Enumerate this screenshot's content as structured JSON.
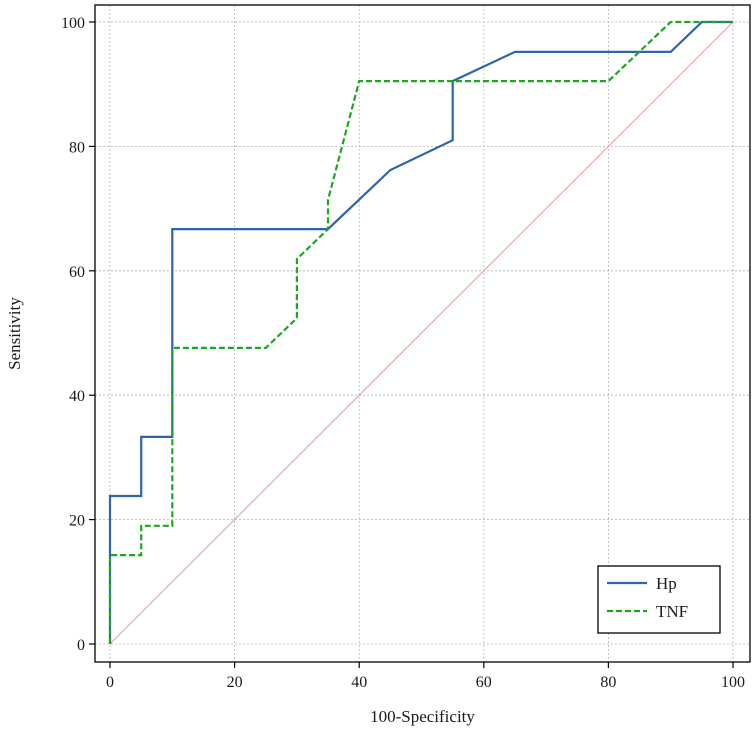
{
  "chart_data": {
    "type": "line",
    "title": "",
    "xlabel": "100-Specificity",
    "ylabel": "Sensitivity",
    "xlim": [
      0,
      100
    ],
    "ylim": [
      0,
      100
    ],
    "xticks": [
      0,
      20,
      40,
      60,
      80,
      100
    ],
    "yticks": [
      0,
      20,
      40,
      60,
      80,
      100
    ],
    "xtick_labels": [
      "0",
      "20",
      "40",
      "60",
      "80",
      "100"
    ],
    "ytick_labels": [
      "0",
      "20",
      "40",
      "60",
      "80",
      "100"
    ],
    "grid": true,
    "legend_position": "bottom-right",
    "series": [
      {
        "name": "Hp",
        "color": "#2e64a8",
        "style": "solid",
        "x": [
          0,
          0,
          5,
          5,
          10,
          10,
          35,
          45,
          55,
          55,
          65,
          90,
          95,
          100
        ],
        "y": [
          0,
          23.8,
          23.8,
          33.3,
          33.3,
          66.7,
          66.7,
          76.2,
          81.0,
          90.5,
          95.2,
          95.2,
          100,
          100
        ]
      },
      {
        "name": "TNF",
        "color": "#1fa51f",
        "style": "dashed",
        "x": [
          0,
          0,
          5,
          5,
          10,
          10,
          25,
          30,
          30,
          35,
          35,
          40,
          80,
          90,
          100
        ],
        "y": [
          0,
          14.3,
          14.3,
          19.0,
          19.0,
          47.6,
          47.6,
          52.4,
          61.9,
          66.7,
          71.4,
          90.5,
          90.5,
          100,
          100
        ]
      }
    ],
    "reference_line": {
      "name": "diagonal",
      "color": "#e8a0a0",
      "x": [
        0,
        100
      ],
      "y": [
        0,
        100
      ]
    }
  }
}
